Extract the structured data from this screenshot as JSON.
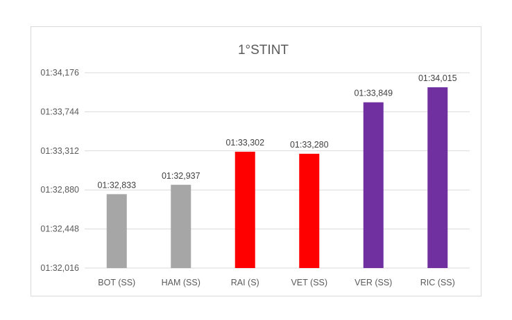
{
  "chart_data": {
    "type": "bar",
    "title": "1°STINT",
    "xlabel": "",
    "ylabel": "",
    "categories": [
      "BOT (SS)",
      "HAM (SS)",
      "RAI (S)",
      "VET (SS)",
      "VER (SS)",
      "RIC (SS)"
    ],
    "values": [
      92.833,
      92.937,
      93.302,
      93.28,
      93.849,
      94.015
    ],
    "data_labels": [
      "01:32,833",
      "01:32,937",
      "01:33,302",
      "01:33,280",
      "01:33,849",
      "01:34,015"
    ],
    "bar_colors": [
      "#a6a6a6",
      "#a6a6a6",
      "#ff0000",
      "#ff0000",
      "#7030a0",
      "#7030a0"
    ],
    "ylim": [
      92.016,
      94.176
    ],
    "yticks": [
      92.016,
      92.448,
      92.88,
      93.312,
      93.744,
      94.176
    ],
    "ytick_labels": [
      "01:32,016",
      "01:32,448",
      "01:32,880",
      "01:33,312",
      "01:33,744",
      "01:34,176"
    ],
    "grid": true,
    "legend": "none"
  }
}
